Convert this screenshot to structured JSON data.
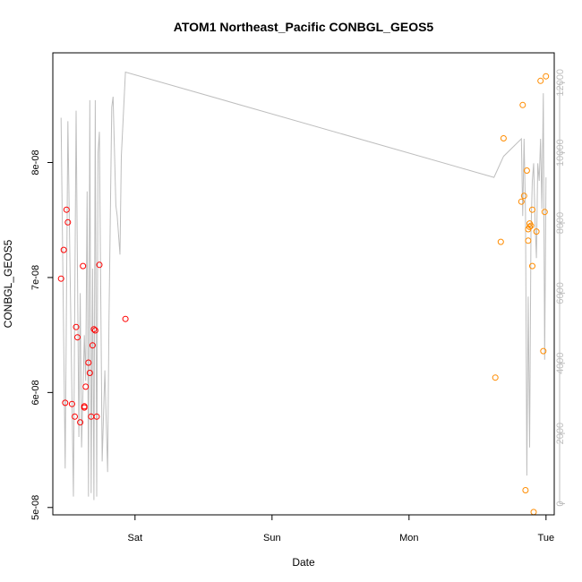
{
  "chart_data": {
    "type": "scatter",
    "title": "ATOM1 Northeast_Pacific CONBGL_GEOS5",
    "xlabel": "Date",
    "ylabel": "CONBGL_GEOS5",
    "x_ticks": [
      {
        "value": 1.0,
        "label": "Sat"
      },
      {
        "value": 2.0,
        "label": "Sun"
      },
      {
        "value": 3.0,
        "label": "Mon"
      },
      {
        "value": 4.0,
        "label": "Tue"
      }
    ],
    "xlim": [
      0.4,
      4.06
    ],
    "y_left": {
      "lim": [
        4.936e-08,
        8.954e-08
      ],
      "ticks": [
        {
          "value": 5e-08,
          "label": "5e-08"
        },
        {
          "value": 6e-08,
          "label": "6e-08"
        },
        {
          "value": 7e-08,
          "label": "7e-08"
        },
        {
          "value": 8e-08,
          "label": "8e-08"
        }
      ]
    },
    "y_right": {
      "lim": [
        -320,
        12850
      ],
      "color": "#bebebe",
      "ticks": [
        {
          "value": 0,
          "label": "0"
        },
        {
          "value": 2000,
          "label": "2000"
        },
        {
          "value": 4000,
          "label": "4000"
        },
        {
          "value": 6000,
          "label": "6000"
        },
        {
          "value": 8000,
          "label": "8000"
        },
        {
          "value": 10000,
          "label": "10000"
        },
        {
          "value": 12000,
          "label": "12000"
        }
      ]
    },
    "series": [
      {
        "color": "#ff0000",
        "marker": "open-circle",
        "x": [
          0.46,
          0.48,
          0.49,
          0.5,
          0.51,
          0.54,
          0.56,
          0.57,
          0.58,
          0.6,
          0.62,
          0.63,
          0.63,
          0.64,
          0.66,
          0.67,
          0.68,
          0.69,
          0.7,
          0.71,
          0.72,
          0.74,
          0.93
        ],
        "y": [
          6.99e-08,
          7.24e-08,
          5.91e-08,
          7.59e-08,
          7.48e-08,
          5.9e-08,
          5.79e-08,
          6.57e-08,
          6.48e-08,
          5.74e-08,
          7.1e-08,
          5.87e-08,
          5.88e-08,
          6.05e-08,
          6.26e-08,
          6.17e-08,
          5.79e-08,
          6.41e-08,
          6.55e-08,
          6.54e-08,
          5.79e-08,
          7.11e-08,
          6.64e-08
        ]
      },
      {
        "color": "#ff8c00",
        "marker": "open-circle",
        "x": [
          3.63,
          3.67,
          3.69,
          3.82,
          3.83,
          3.84,
          3.85,
          3.86,
          3.87,
          3.87,
          3.88,
          3.88,
          3.89,
          3.9,
          3.9,
          3.91,
          3.93,
          3.96,
          3.98,
          3.99,
          3.999
        ],
        "y": [
          6.13e-08,
          7.31e-08,
          8.21e-08,
          7.66e-08,
          8.5e-08,
          7.71e-08,
          5.15e-08,
          7.93e-08,
          7.42e-08,
          7.32e-08,
          7.44e-08,
          7.47e-08,
          7.45e-08,
          7.1e-08,
          7.59e-08,
          4.96e-08,
          7.4e-08,
          8.71e-08,
          6.36e-08,
          7.57e-08,
          8.75e-08
        ]
      },
      {
        "name": "",
        "color": "#bebebe",
        "marker": "line",
        "axis": "right",
        "x": [
          0.46,
          0.49,
          0.51,
          0.55,
          0.57,
          0.59,
          0.6,
          0.61,
          0.63,
          0.64,
          0.65,
          0.66,
          0.67,
          0.68,
          0.69,
          0.7,
          0.71,
          0.72,
          0.73,
          0.74,
          0.76,
          0.78,
          0.8,
          0.81,
          0.83,
          0.84,
          0.86,
          0.87,
          0.89,
          0.9,
          0.93,
          3.62,
          3.69,
          3.82,
          3.83,
          3.84,
          3.85,
          3.86,
          3.87,
          3.88,
          3.89,
          3.9,
          3.91,
          3.92,
          3.93,
          3.94,
          3.95,
          3.96,
          3.97,
          3.98,
          3.99,
          4.0
        ],
        "y": [
          11000,
          1000,
          10900,
          200,
          11200,
          1900,
          6000,
          1600,
          4800,
          3500,
          8900,
          200,
          11500,
          300,
          6700,
          100,
          11500,
          200,
          10000,
          10600,
          1200,
          3800,
          900,
          5200,
          11300,
          11600,
          8500,
          8200,
          7100,
          9900,
          12300,
          9300,
          9900,
          10400,
          8200,
          10400,
          8300,
          800,
          5900,
          1600,
          7700,
          9200,
          9700,
          8000,
          7000,
          9700,
          9200,
          10400,
          8400,
          11700,
          4100,
          9300
        ]
      }
    ]
  }
}
